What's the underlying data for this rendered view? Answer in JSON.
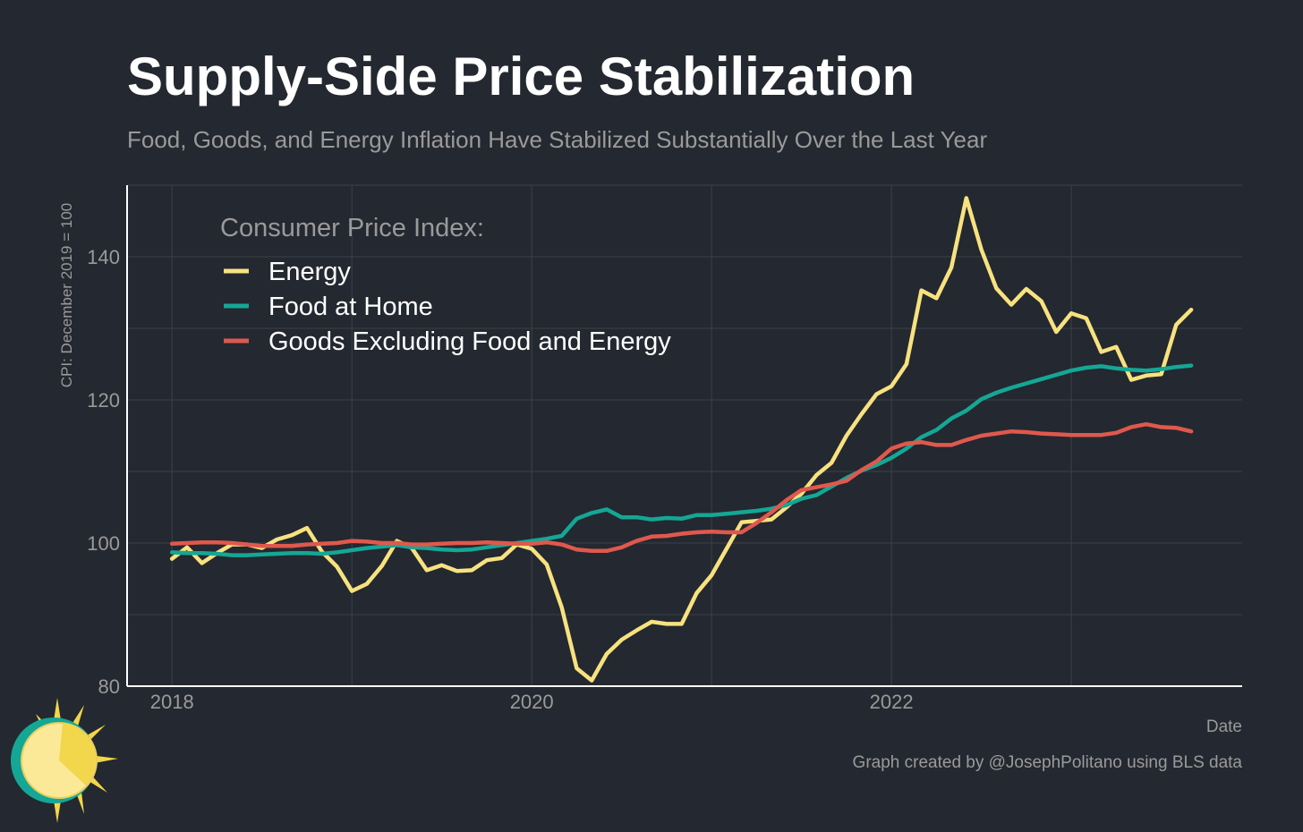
{
  "title": "Supply-Side Price Stabilization",
  "subtitle": "Food, Goods, and Energy Inflation Have Stabilized Substantially Over the Last Year",
  "credit": "Graph created by @JosephPolitano using BLS data",
  "colors": {
    "background": "#242830",
    "grid": "#3c414a",
    "energy": "#f7e27f",
    "food": "#14a795",
    "goods": "#e0584d"
  },
  "chart_data": {
    "type": "line",
    "xlabel": "Date",
    "ylabel": "CPI: December 2019 = 100",
    "legend_title": "Consumer Price Index:",
    "legend_position": "top-left",
    "grid": true,
    "xlim": [
      2017.75,
      2023.95
    ],
    "ylim": [
      80,
      150
    ],
    "x_ticks": [
      2018,
      2020,
      2022
    ],
    "y_ticks": [
      80,
      100,
      120,
      140
    ],
    "x_start": "2018-01",
    "frequency": "monthly",
    "series": [
      {
        "name": "Energy",
        "color": "#f7e27f",
        "values": [
          97.8,
          99.4,
          97.2,
          98.6,
          99.8,
          99.8,
          99.3,
          100.5,
          101.1,
          102.1,
          98.8,
          96.7,
          93.3,
          94.3,
          96.8,
          100.3,
          99.3,
          96.2,
          96.9,
          96.1,
          96.2,
          97.6,
          97.9,
          99.8,
          99.2,
          97.0,
          91.0,
          82.5,
          80.8,
          84.5,
          86.5,
          87.8,
          89.0,
          88.7,
          88.7,
          93.0,
          95.5,
          99.2,
          102.9,
          103.1,
          103.3,
          105.0,
          106.9,
          109.5,
          111.2,
          115.0,
          118.0,
          120.8,
          121.9,
          125.0,
          135.3,
          134.2,
          138.5,
          148.2,
          141.0,
          135.6,
          133.3,
          135.5,
          133.8,
          129.5,
          132.1,
          131.4,
          126.7,
          127.4,
          122.8,
          123.4,
          123.6,
          130.5,
          132.6
        ]
      },
      {
        "name": "Food at Home",
        "color": "#14a795",
        "values": [
          98.7,
          98.6,
          98.6,
          98.5,
          98.3,
          98.3,
          98.4,
          98.5,
          98.6,
          98.6,
          98.5,
          98.7,
          99.0,
          99.3,
          99.5,
          99.7,
          99.4,
          99.3,
          99.1,
          99.0,
          99.1,
          99.4,
          99.7,
          100.0,
          100.3,
          100.6,
          101.0,
          103.4,
          104.2,
          104.7,
          103.6,
          103.6,
          103.3,
          103.5,
          103.4,
          103.9,
          103.9,
          104.1,
          104.3,
          104.5,
          104.8,
          105.3,
          106.2,
          106.7,
          107.9,
          109.1,
          110.1,
          110.9,
          111.9,
          113.2,
          114.8,
          115.8,
          117.4,
          118.5,
          120.1,
          121.0,
          121.7,
          122.3,
          122.9,
          123.5,
          124.1,
          124.5,
          124.7,
          124.4,
          124.2,
          124.1,
          124.3,
          124.6,
          124.8
        ]
      },
      {
        "name": "Goods Excluding Food and Energy",
        "color": "#e0584d",
        "values": [
          99.9,
          100.0,
          100.1,
          100.1,
          100.0,
          99.8,
          99.6,
          99.6,
          99.6,
          99.8,
          99.9,
          100.0,
          100.3,
          100.2,
          100.0,
          100.0,
          99.8,
          99.8,
          99.9,
          100.0,
          100.0,
          100.1,
          100.0,
          99.9,
          99.9,
          100.1,
          99.8,
          99.1,
          98.9,
          98.9,
          99.4,
          100.3,
          100.9,
          101.0,
          101.3,
          101.5,
          101.6,
          101.5,
          101.5,
          102.8,
          104.3,
          106.0,
          107.4,
          107.8,
          108.2,
          108.7,
          110.2,
          111.4,
          113.2,
          113.9,
          114.1,
          113.7,
          113.7,
          114.4,
          115.0,
          115.3,
          115.6,
          115.5,
          115.3,
          115.2,
          115.1,
          115.1,
          115.1,
          115.4,
          116.2,
          116.6,
          116.2,
          116.1,
          115.6
        ]
      }
    ]
  }
}
